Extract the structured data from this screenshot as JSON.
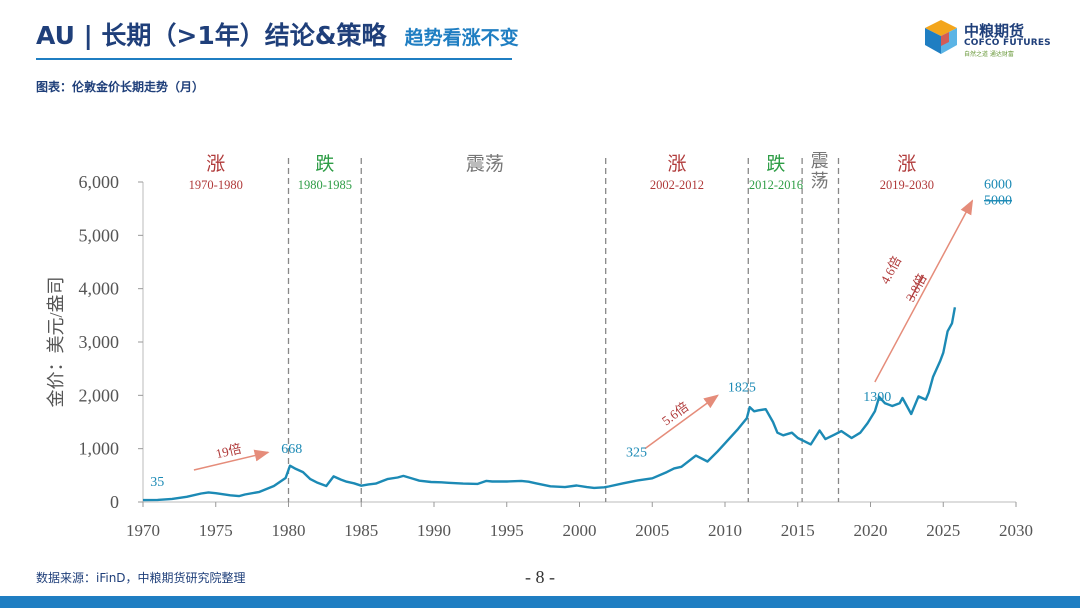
{
  "header": {
    "title": "AU | 长期（>1年）结论&策略",
    "subtitle": "趋势看涨不变"
  },
  "logo": {
    "name_cn": "中粮期货",
    "name_en": "COFCO FUTURES",
    "slogan": "自然之道 通达财富"
  },
  "caption": "图表：伦敦金价长期走势（月）",
  "footer": {
    "source": "数据来源：iFinD，中粮期货研究院整理",
    "page": "- 8 -"
  },
  "colors": {
    "brand_blue": "#1f7ec2",
    "title_navy": "#1f3f7a",
    "line_teal": "#1c8ab5",
    "up_red": "#b03a3a",
    "down_green": "#2e9d46",
    "neutral_gray": "#777777",
    "arrow_salmon": "#e58c7a"
  },
  "chart_data": {
    "type": "line",
    "title": "伦敦金价长期走势（月）",
    "xlabel": "",
    "ylabel": "金价：美元/盎司",
    "xlim": [
      1970,
      2030
    ],
    "ylim": [
      0,
      6000
    ],
    "x_ticks": [
      "1970",
      "1975",
      "1980",
      "1985",
      "1990",
      "1995",
      "2000",
      "2005",
      "2010",
      "2015",
      "2020",
      "2025",
      "2030"
    ],
    "y_ticks": [
      "0",
      "1,000",
      "2,000",
      "3,000",
      "4,000",
      "5,000",
      "6,000"
    ],
    "series": [
      {
        "name": "伦敦金价",
        "points": [
          [
            1970.0,
            35
          ],
          [
            1971.0,
            40
          ],
          [
            1972.0,
            58
          ],
          [
            1973.0,
            97
          ],
          [
            1974.0,
            160
          ],
          [
            1974.5,
            180
          ],
          [
            1975.0,
            165
          ],
          [
            1976.0,
            125
          ],
          [
            1976.6,
            110
          ],
          [
            1977.0,
            140
          ],
          [
            1978.0,
            190
          ],
          [
            1979.0,
            300
          ],
          [
            1979.8,
            450
          ],
          [
            1980.1,
            680
          ],
          [
            1980.5,
            620
          ],
          [
            1981.0,
            560
          ],
          [
            1981.5,
            430
          ],
          [
            1982.0,
            360
          ],
          [
            1982.6,
            300
          ],
          [
            1983.1,
            480
          ],
          [
            1983.6,
            420
          ],
          [
            1984.0,
            380
          ],
          [
            1984.5,
            350
          ],
          [
            1985.0,
            305
          ],
          [
            1985.5,
            330
          ],
          [
            1986.0,
            345
          ],
          [
            1986.8,
            430
          ],
          [
            1987.5,
            460
          ],
          [
            1987.9,
            490
          ],
          [
            1988.5,
            440
          ],
          [
            1989.0,
            400
          ],
          [
            1989.8,
            375
          ],
          [
            1990.5,
            370
          ],
          [
            1991.0,
            360
          ],
          [
            1992.0,
            345
          ],
          [
            1993.0,
            340
          ],
          [
            1993.6,
            395
          ],
          [
            1994.0,
            385
          ],
          [
            1995.0,
            385
          ],
          [
            1996.0,
            395
          ],
          [
            1996.5,
            380
          ],
          [
            1997.0,
            350
          ],
          [
            1998.0,
            295
          ],
          [
            1999.0,
            280
          ],
          [
            1999.8,
            310
          ],
          [
            2000.5,
            280
          ],
          [
            2001.0,
            265
          ],
          [
            2001.7,
            275
          ],
          [
            2002.0,
            290
          ],
          [
            2003.0,
            350
          ],
          [
            2004.0,
            405
          ],
          [
            2005.0,
            445
          ],
          [
            2006.0,
            560
          ],
          [
            2006.5,
            630
          ],
          [
            2007.0,
            660
          ],
          [
            2008.0,
            870
          ],
          [
            2008.8,
            760
          ],
          [
            2009.5,
            950
          ],
          [
            2010.0,
            1100
          ],
          [
            2010.9,
            1370
          ],
          [
            2011.5,
            1570
          ],
          [
            2011.7,
            1780
          ],
          [
            2012.0,
            1700
          ],
          [
            2012.3,
            1720
          ],
          [
            2012.8,
            1740
          ],
          [
            2013.3,
            1500
          ],
          [
            2013.6,
            1300
          ],
          [
            2014.0,
            1250
          ],
          [
            2014.6,
            1300
          ],
          [
            2015.0,
            1200
          ],
          [
            2015.9,
            1080
          ],
          [
            2016.5,
            1340
          ],
          [
            2016.9,
            1180
          ],
          [
            2017.5,
            1260
          ],
          [
            2018.0,
            1330
          ],
          [
            2018.7,
            1200
          ],
          [
            2019.3,
            1300
          ],
          [
            2019.8,
            1480
          ],
          [
            2020.3,
            1700
          ],
          [
            2020.6,
            1970
          ],
          [
            2021.0,
            1850
          ],
          [
            2021.5,
            1800
          ],
          [
            2022.0,
            1850
          ],
          [
            2022.2,
            1950
          ],
          [
            2022.8,
            1650
          ],
          [
            2023.3,
            1980
          ],
          [
            2023.8,
            1920
          ],
          [
            2024.0,
            2050
          ],
          [
            2024.3,
            2350
          ],
          [
            2024.8,
            2650
          ],
          [
            2025.0,
            2800
          ],
          [
            2025.3,
            3200
          ],
          [
            2025.6,
            3350
          ],
          [
            2025.8,
            3650
          ]
        ]
      }
    ],
    "period_dividers": [
      1980.0,
      1985.0,
      2001.8,
      2011.6,
      2015.3,
      2017.8
    ],
    "periods": [
      {
        "label": "涨",
        "range": "1970-1980",
        "kind": "up",
        "center": 1975.0
      },
      {
        "label": "跌",
        "range": "1980-1985",
        "kind": "down",
        "center": 1982.5
      },
      {
        "label": "震荡",
        "range": "",
        "kind": "flat",
        "center": 1993.5
      },
      {
        "label": "涨",
        "range": "2002-2012",
        "kind": "up",
        "center": 2006.7
      },
      {
        "label": "跌",
        "range": "2012-2016",
        "kind": "down",
        "center": 2013.5
      },
      {
        "label": "震荡",
        "range": "",
        "kind": "flat-vertical",
        "center": 2016.5
      },
      {
        "label": "涨",
        "range": "2019-2030",
        "kind": "up",
        "center": 2022.5
      }
    ],
    "annotations": [
      {
        "text": "35",
        "x": 1970.5,
        "y": 300
      },
      {
        "text": "668",
        "x": 1979.5,
        "y": 920
      },
      {
        "text": "325",
        "x": 2003.2,
        "y": 850
      },
      {
        "text": "1825",
        "x": 2010.2,
        "y": 2070
      },
      {
        "text": "1300",
        "x": 2019.5,
        "y": 1890
      },
      {
        "text": "6000",
        "x": 2027.8,
        "y": 5880
      },
      {
        "text": "5000",
        "x": 2027.8,
        "y": 5580,
        "strikethrough": true
      }
    ],
    "arrows": [
      {
        "from": [
          1973.5,
          600
        ],
        "to": [
          1978.6,
          930
        ],
        "label": "19倍"
      },
      {
        "from": [
          2004.5,
          1000
        ],
        "to": [
          2009.5,
          2000
        ],
        "label": "5.6倍"
      },
      {
        "from": [
          2020.3,
          2250
        ],
        "to": [
          2027.0,
          5650
        ],
        "label": "4.6倍"
      },
      {
        "from": [
          2020.3,
          2250
        ],
        "to": [
          2027.0,
          5650
        ],
        "label": "3.8倍",
        "strikethrough": true
      }
    ]
  }
}
